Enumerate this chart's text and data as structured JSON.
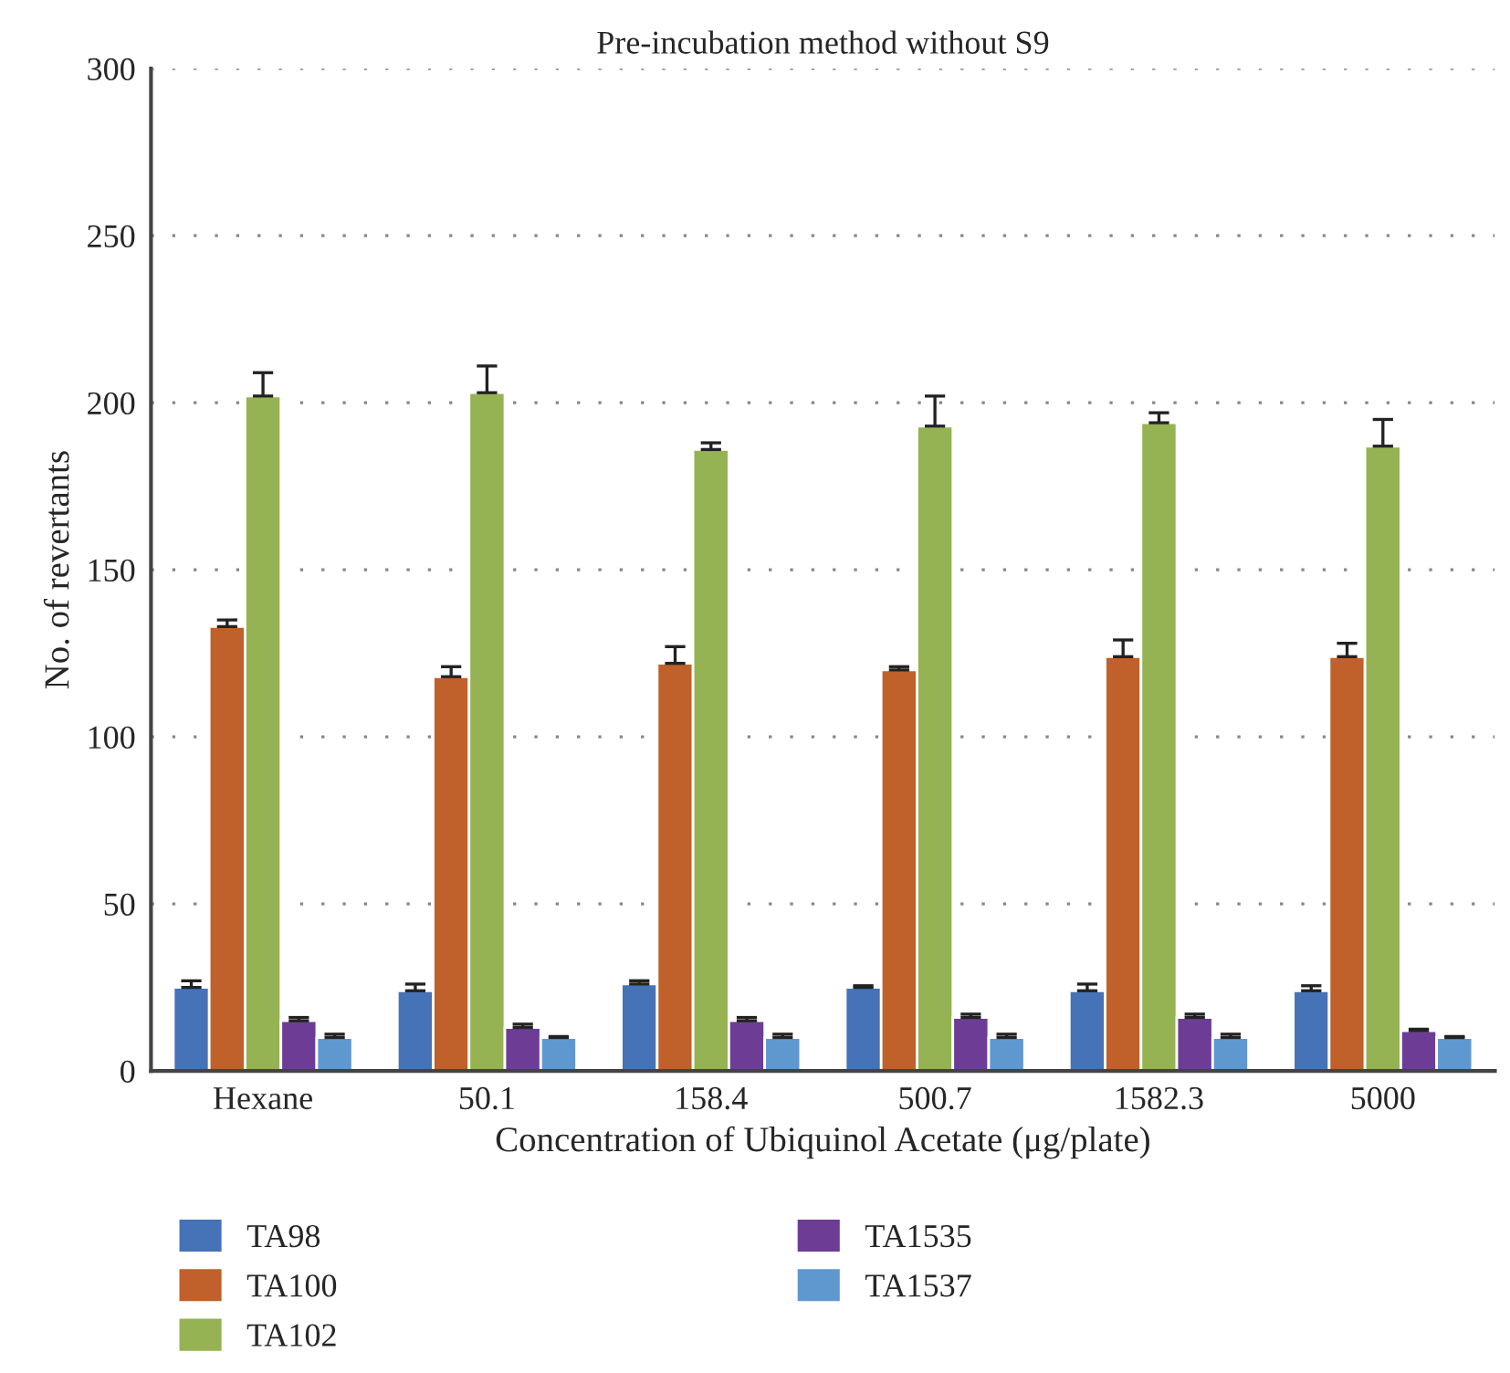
{
  "chart_data": {
    "type": "bar",
    "title": "Pre-incubation method without S9",
    "xlabel": "Concentration of Ubiquinol Acetate (μg/plate)",
    "ylabel": "No. of revertants",
    "categories": [
      "Hexane",
      "50.1",
      "158.4",
      "500.7",
      "1582.3",
      "5000"
    ],
    "series": [
      {
        "name": "TA98",
        "color": "#4672b8",
        "values": [
          25,
          24,
          26,
          25,
          24,
          24
        ],
        "errors": [
          [
            25,
            27
          ],
          [
            24,
            26
          ],
          [
            26,
            27
          ],
          [
            25,
            25.5
          ],
          [
            24,
            26
          ],
          [
            24,
            25.5
          ]
        ]
      },
      {
        "name": "TA100",
        "color": "#c0602a",
        "values": [
          133,
          118,
          122,
          120,
          124,
          124
        ],
        "errors": [
          [
            133,
            135
          ],
          [
            118,
            121
          ],
          [
            122,
            127
          ],
          [
            120,
            121
          ],
          [
            124,
            129
          ],
          [
            124,
            128
          ]
        ]
      },
      {
        "name": "TA102",
        "color": "#95b353",
        "values": [
          202,
          203,
          186,
          193,
          194,
          187
        ],
        "errors": [
          [
            202,
            209
          ],
          [
            203,
            211
          ],
          [
            186,
            188
          ],
          [
            193,
            202
          ],
          [
            194,
            197
          ],
          [
            187,
            195
          ]
        ]
      },
      {
        "name": "TA1535",
        "color": "#6d3d96",
        "values": [
          15,
          13,
          15,
          16,
          16,
          12
        ],
        "errors": [
          [
            15,
            16
          ],
          [
            13,
            14
          ],
          [
            15,
            16
          ],
          [
            16,
            17
          ],
          [
            16,
            17
          ],
          [
            12,
            12.5
          ]
        ]
      },
      {
        "name": "TA1537",
        "color": "#5f98cf",
        "values": [
          10,
          10,
          10,
          10,
          10,
          10
        ],
        "errors": [
          [
            10,
            11
          ],
          [
            10,
            10.3
          ],
          [
            10,
            11
          ],
          [
            10,
            11
          ],
          [
            10,
            11
          ],
          [
            10,
            10.3
          ]
        ]
      }
    ],
    "ylim": [
      0,
      300
    ],
    "yticks": [
      0,
      50,
      100,
      150,
      200,
      250,
      300
    ],
    "grid": "y",
    "legend": "bottom"
  }
}
